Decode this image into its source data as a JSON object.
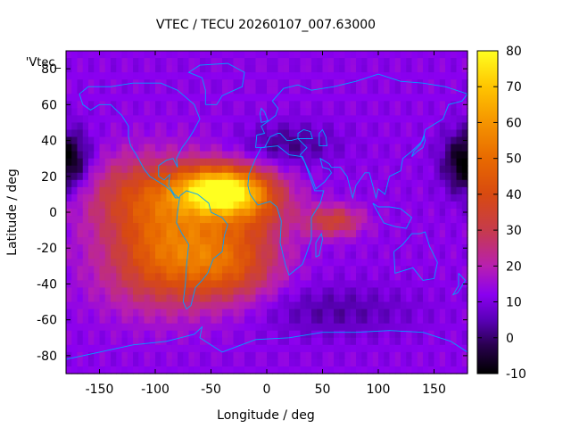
{
  "title": "VTEC / TECU 20260107_007.63000",
  "overlay_label": "'Vtec_",
  "xlabel": "Longitude / deg",
  "ylabel": "Latitude / deg",
  "chart_data": {
    "type": "heatmap",
    "x_range": [
      -180,
      180
    ],
    "y_range": [
      -90,
      90
    ],
    "x_ticks": [
      -150,
      -100,
      -50,
      0,
      50,
      100,
      150
    ],
    "y_ticks": [
      -80,
      -60,
      -40,
      -20,
      0,
      20,
      40,
      60,
      80
    ],
    "colorbar": {
      "range": [
        -10,
        80
      ],
      "ticks": [
        -10,
        0,
        10,
        20,
        30,
        40,
        50,
        60,
        70,
        80
      ],
      "palette": [
        [
          -10,
          "#000000"
        ],
        [
          -2,
          "#2a0050"
        ],
        [
          5,
          "#5a00b8"
        ],
        [
          12,
          "#8a00f0"
        ],
        [
          20,
          "#b81fb0"
        ],
        [
          30,
          "#c63b4c"
        ],
        [
          40,
          "#d84a10"
        ],
        [
          50,
          "#e86a00"
        ],
        [
          60,
          "#f59400"
        ],
        [
          70,
          "#ffc500"
        ],
        [
          80,
          "#ffff20"
        ]
      ]
    },
    "features": [
      {
        "kind": "equatorial-anomaly",
        "lon": -40,
        "lat": 5,
        "peak": 78
      },
      {
        "kind": "dayside-enhancement",
        "lon": -70,
        "lat": -10,
        "peak": 55
      },
      {
        "kind": "africa-enhancement",
        "lon": 60,
        "lat": -5,
        "peak": 40
      },
      {
        "kind": "nightside-minimum",
        "lon": -180,
        "lat": 30,
        "peak": -8
      },
      {
        "kind": "nightside-minimum",
        "lon": 180,
        "lat": 30,
        "peak": -8
      }
    ],
    "coastline_color": "#00a0ff"
  }
}
